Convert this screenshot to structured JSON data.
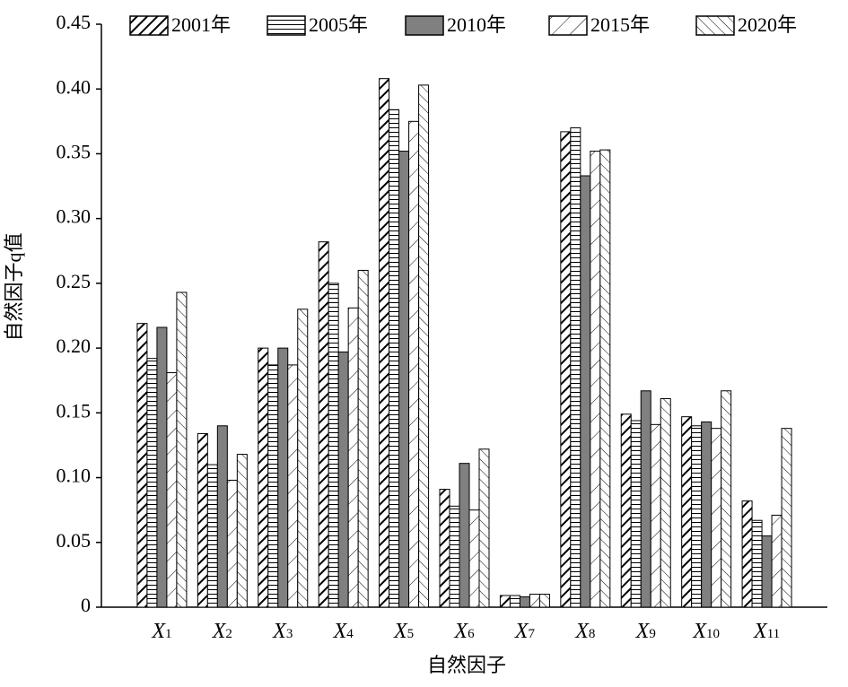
{
  "chart_data": {
    "type": "bar",
    "x_label": "自然因子",
    "y_label": "自然因子q值",
    "categories": [
      "X1",
      "X2",
      "X3",
      "X4",
      "X5",
      "X6",
      "X7",
      "X8",
      "X9",
      "X10",
      "X11"
    ],
    "series": [
      {
        "name": "2001年",
        "color": "#000000",
        "hatch": "diag-bold",
        "values": [
          0.219,
          0.134,
          0.2,
          0.282,
          0.408,
          0.091,
          0.009,
          0.367,
          0.149,
          0.147,
          0.082
        ]
      },
      {
        "name": "2005年",
        "color": "#000000",
        "hatch": "horizontal",
        "values": [
          0.192,
          0.11,
          0.187,
          0.25,
          0.384,
          0.078,
          0.009,
          0.37,
          0.144,
          0.14,
          0.067
        ]
      },
      {
        "name": "2010年",
        "color": "#808080",
        "hatch": "solid",
        "values": [
          0.216,
          0.14,
          0.2,
          0.197,
          0.352,
          0.111,
          0.008,
          0.333,
          0.167,
          0.143,
          0.055
        ]
      },
      {
        "name": "2015年",
        "color": "#000000",
        "hatch": "diag",
        "values": [
          0.181,
          0.098,
          0.187,
          0.231,
          0.375,
          0.075,
          0.01,
          0.352,
          0.141,
          0.138,
          0.071
        ]
      },
      {
        "name": "2020年",
        "color": "#000000",
        "hatch": "back-diag",
        "values": [
          0.243,
          0.118,
          0.23,
          0.26,
          0.403,
          0.122,
          0.01,
          0.353,
          0.161,
          0.167,
          0.138
        ]
      }
    ],
    "ylim": [
      0,
      0.45
    ],
    "yticks": [
      0,
      0.05,
      {
        "value": 0.1,
        "label": "0.10"
      },
      0.15,
      {
        "value": 0.2,
        "label": "0.20"
      },
      0.25,
      {
        "value": 0.3,
        "label": "0.30"
      },
      0.35,
      {
        "value": 0.4,
        "label": "0.40"
      },
      0.45
    ],
    "grid": false,
    "legend": "top"
  }
}
